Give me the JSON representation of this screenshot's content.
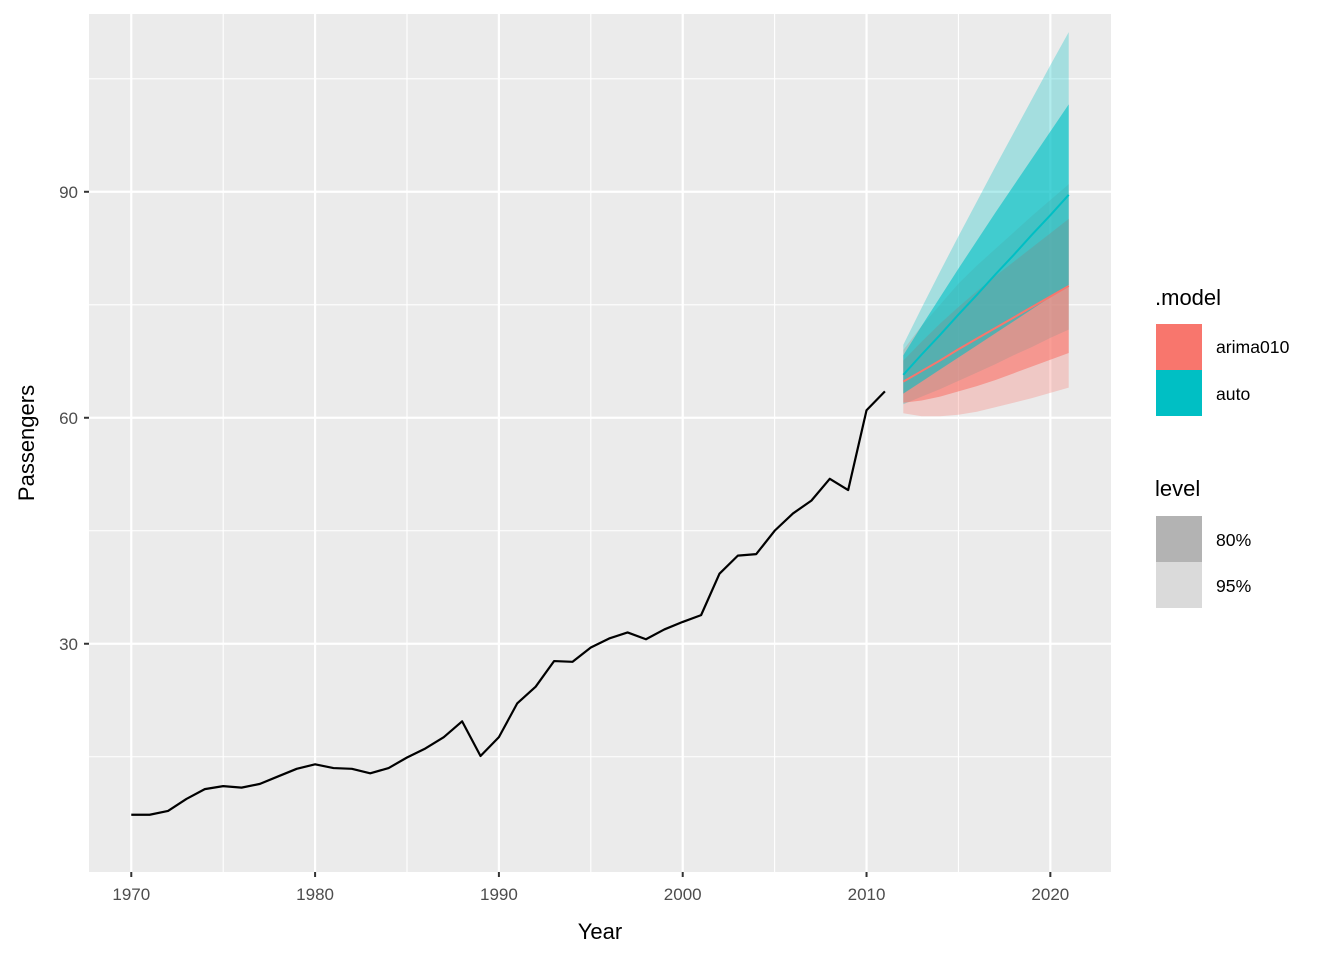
{
  "chart_data": {
    "type": "line",
    "xlabel": "Year",
    "ylabel": "Passengers",
    "xlim": [
      1967.7,
      2023.3
    ],
    "ylim": [
      -0.3,
      113.6
    ],
    "x_ticks": [
      1970,
      1980,
      1990,
      2000,
      2010,
      2020
    ],
    "y_ticks": [
      30,
      60,
      90
    ],
    "grid": true,
    "legend_position": "right",
    "historical": {
      "x": [
        1970,
        1971,
        1972,
        1973,
        1974,
        1975,
        1976,
        1977,
        1978,
        1979,
        1980,
        1981,
        1982,
        1983,
        1984,
        1985,
        1986,
        1987,
        1988,
        1989,
        1990,
        1991,
        1992,
        1993,
        1994,
        1995,
        1996,
        1997,
        1998,
        1999,
        2000,
        2001,
        2002,
        2003,
        2004,
        2005,
        2006,
        2007,
        2008,
        2009,
        2010,
        2011
      ],
      "y": [
        7.3,
        7.3,
        7.8,
        9.4,
        10.7,
        11.1,
        10.9,
        11.4,
        12.4,
        13.4,
        14.0,
        13.5,
        13.4,
        12.8,
        13.5,
        14.9,
        16.1,
        17.6,
        19.7,
        15.1,
        17.6,
        22.1,
        24.3,
        27.7,
        27.6,
        29.5,
        30.7,
        31.5,
        30.6,
        31.9,
        32.9,
        33.8,
        39.3,
        41.7,
        41.9,
        45.0,
        47.3,
        49.0,
        51.9,
        50.4,
        61.0,
        63.5
      ],
      "color": "#000000"
    },
    "forecasts": [
      {
        "name": "arima010",
        "color": "#F8766D",
        "x": [
          2012,
          2013,
          2014,
          2015,
          2016,
          2017,
          2018,
          2019,
          2020,
          2021
        ],
        "mean": [
          64.8,
          66.2,
          67.6,
          69.1,
          70.5,
          71.9,
          73.3,
          74.7,
          76.1,
          77.5
        ],
        "lo80": [
          62.0,
          62.3,
          62.8,
          63.5,
          64.2,
          65.0,
          65.9,
          66.8,
          67.7,
          68.6
        ],
        "hi80": [
          67.6,
          70.1,
          72.5,
          74.7,
          76.8,
          78.8,
          80.7,
          82.6,
          84.5,
          86.4
        ],
        "lo95": [
          60.6,
          60.2,
          60.2,
          60.4,
          60.8,
          61.4,
          62.0,
          62.6,
          63.3,
          64.0
        ],
        "hi95": [
          69.0,
          72.2,
          75.0,
          77.8,
          80.2,
          82.4,
          84.6,
          86.8,
          88.9,
          91.0
        ]
      },
      {
        "name": "auto",
        "color": "#00BFC4",
        "x": [
          2012,
          2013,
          2014,
          2015,
          2016,
          2017,
          2018,
          2019,
          2020,
          2021
        ],
        "mean": [
          65.7,
          68.4,
          71.0,
          73.7,
          76.3,
          79.0,
          81.6,
          84.3,
          86.9,
          89.6
        ],
        "lo80": [
          63.2,
          64.8,
          66.4,
          68.0,
          69.6,
          71.2,
          72.8,
          74.4,
          76.0,
          77.6
        ],
        "hi80": [
          68.3,
          72.2,
          76.0,
          79.8,
          83.5,
          87.2,
          90.8,
          94.4,
          98.0,
          101.6
        ],
        "lo95": [
          61.8,
          62.8,
          63.8,
          64.9,
          66.0,
          67.1,
          68.3,
          69.4,
          70.6,
          71.7
        ],
        "hi95": [
          69.7,
          74.6,
          79.4,
          84.1,
          88.7,
          93.3,
          97.8,
          102.3,
          106.8,
          111.2
        ]
      }
    ],
    "legends": [
      {
        "title": ".model",
        "entries": [
          {
            "label": "arima010",
            "color": "#F8766D"
          },
          {
            "label": "auto",
            "color": "#00BFC4"
          }
        ]
      },
      {
        "title": "level",
        "entries": [
          {
            "label": "80%",
            "color": "#B3B3B3"
          },
          {
            "label": "95%",
            "color": "#DADADA"
          }
        ]
      }
    ]
  }
}
